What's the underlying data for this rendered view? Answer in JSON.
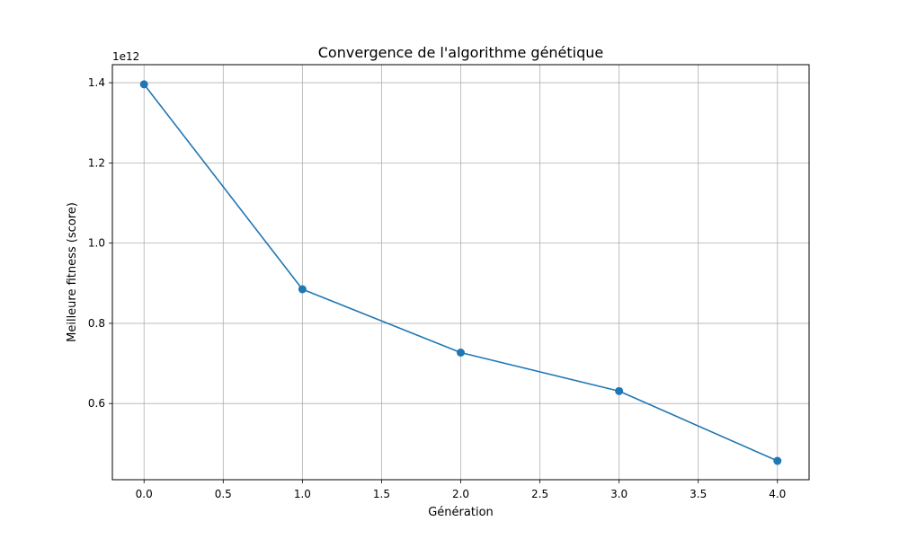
{
  "chart_data": {
    "type": "line",
    "title": "Convergence de l'algorithme génétique",
    "xlabel": "Génération",
    "ylabel": "Meilleure fitness (score)",
    "y_offset_label": "1e12",
    "x": [
      0,
      1,
      2,
      3,
      4
    ],
    "series": [
      {
        "values": [
          1396000000000.0,
          885000000000.0,
          727000000000.0,
          631000000000.0,
          457000000000.0
        ],
        "color": "#1f77b4"
      }
    ],
    "xlim": [
      -0.2,
      4.2
    ],
    "ylim": [
      410000000000.0,
      1445000000000.0
    ],
    "x_ticks": [
      0.0,
      0.5,
      1.0,
      1.5,
      2.0,
      2.5,
      3.0,
      3.5,
      4.0
    ],
    "x_tick_labels": [
      "0.0",
      "0.5",
      "1.0",
      "1.5",
      "2.0",
      "2.5",
      "3.0",
      "3.5",
      "4.0"
    ],
    "y_ticks": [
      600000000000.0,
      800000000000.0,
      1000000000000.0,
      1200000000000.0,
      1400000000000.0
    ],
    "y_tick_labels": [
      "0.6",
      "0.8",
      "1.0",
      "1.2",
      "1.4"
    ],
    "grid": true,
    "legend": false
  }
}
